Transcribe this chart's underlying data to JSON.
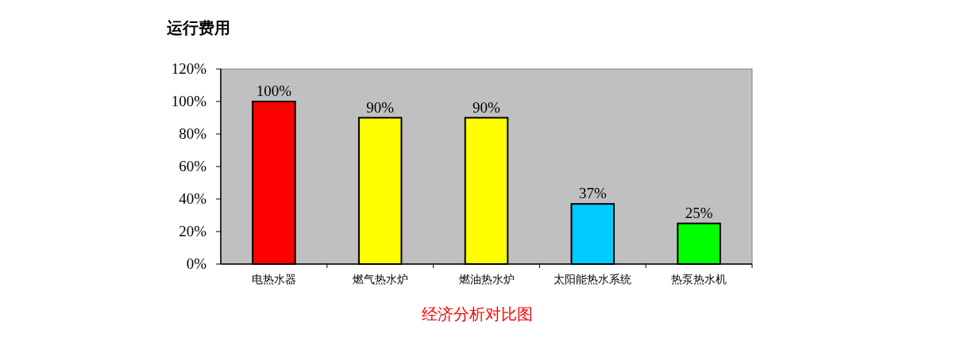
{
  "chart_data": {
    "type": "bar",
    "title": "运行费用",
    "categories": [
      "电热水器",
      "燃气热水炉",
      "燃油热水炉",
      "太阳能热水系统",
      "热泵热水机"
    ],
    "values": [
      100,
      90,
      90,
      37,
      25
    ],
    "colors": [
      "#ff0000",
      "#ffff00",
      "#ffff00",
      "#00ccff",
      "#00ff00"
    ],
    "value_labels": [
      "100%",
      "90%",
      "90%",
      "37%",
      "25%"
    ],
    "ylim": [
      0,
      120
    ],
    "yticks": [
      {
        "value": 0,
        "label": "0%"
      },
      {
        "value": 20,
        "label": "20%"
      },
      {
        "value": 40,
        "label": "40%"
      },
      {
        "value": 60,
        "label": "60%"
      },
      {
        "value": 80,
        "label": "80%"
      },
      {
        "value": 100,
        "label": "100%"
      },
      {
        "value": 120,
        "label": "120%"
      }
    ],
    "annotations": [
      "经济分析对比图"
    ]
  }
}
